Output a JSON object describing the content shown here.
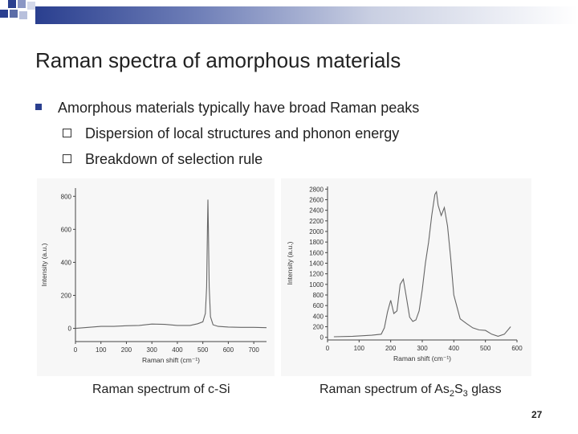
{
  "slide": {
    "title": "Raman spectra of amorphous materials",
    "bullet": "Amorphous materials typically have broad Raman peaks",
    "sub_bullets": [
      "Dispersion of local structures and phonon energy",
      "Breakdown of selection rule"
    ],
    "caption_left": "Raman spectrum of c-Si",
    "caption_right_parts": [
      "Raman spectrum of As",
      "2",
      "S",
      "3",
      " glass"
    ],
    "page_number": "27",
    "accent_color": "#2a3f8f"
  },
  "chart_data": [
    {
      "type": "line",
      "xlabel": "Raman shift (cm⁻¹)",
      "ylabel": "Intensity (a.u.)",
      "xlim": [
        0,
        750
      ],
      "ylim": [
        -80,
        850
      ],
      "x_ticks": [
        "0",
        "100",
        "200",
        "300",
        "400",
        "500",
        "600",
        "700"
      ],
      "y_ticks": [
        "0",
        "200",
        "400",
        "600",
        "800"
      ],
      "series": [
        {
          "x": [
            0,
            50,
            100,
            150,
            200,
            250,
            300,
            350,
            400,
            450,
            480,
            500,
            510,
            515,
            518,
            520,
            522,
            525,
            530,
            540,
            560,
            600,
            650,
            700,
            750
          ],
          "y": [
            0,
            6,
            12,
            12,
            16,
            18,
            26,
            24,
            18,
            18,
            28,
            40,
            90,
            250,
            600,
            780,
            600,
            250,
            70,
            22,
            12,
            8,
            6,
            6,
            4
          ]
        }
      ]
    },
    {
      "type": "line",
      "xlabel": "Raman shift (cm⁻¹)",
      "ylabel": "Intensity (a.u.)",
      "xlim": [
        0,
        600
      ],
      "ylim": [
        -50,
        2850
      ],
      "x_ticks": [
        "0",
        "100",
        "200",
        "300",
        "400",
        "500",
        "600"
      ],
      "y_ticks": [
        "0",
        "200",
        "400",
        "600",
        "800",
        "1000",
        "1200",
        "1400",
        "1600",
        "1800",
        "2000",
        "2200",
        "2400",
        "2600",
        "2800"
      ],
      "series": [
        {
          "x": [
            20,
            80,
            140,
            170,
            180,
            190,
            200,
            210,
            220,
            230,
            240,
            250,
            260,
            270,
            280,
            290,
            300,
            310,
            320,
            330,
            340,
            345,
            350,
            360,
            370,
            380,
            390,
            400,
            420,
            440,
            460,
            480,
            500,
            520,
            540,
            560,
            580
          ],
          "y": [
            10,
            20,
            40,
            60,
            180,
            480,
            700,
            450,
            500,
            1000,
            1100,
            750,
            380,
            300,
            330,
            500,
            900,
            1400,
            1800,
            2300,
            2700,
            2750,
            2500,
            2300,
            2450,
            2100,
            1500,
            800,
            350,
            260,
            180,
            140,
            130,
            60,
            20,
            60,
            200
          ]
        }
      ]
    }
  ]
}
